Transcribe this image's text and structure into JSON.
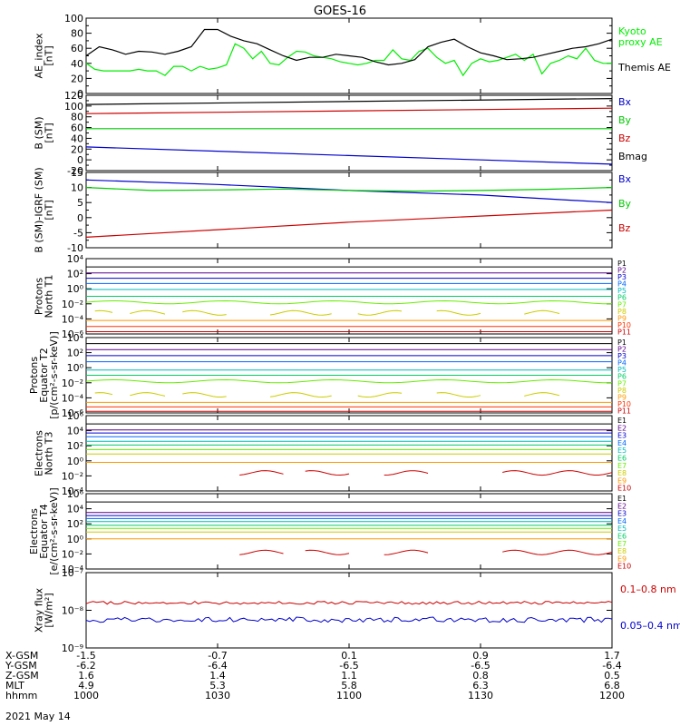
{
  "title": "GOES-16",
  "chart_data": [
    {
      "type": "line",
      "panel": "ae",
      "ylabel": [
        "AE_index",
        "[nT]"
      ],
      "ylim": [
        0,
        100
      ],
      "yticks": [
        0,
        20,
        40,
        60,
        80,
        100
      ],
      "series": [
        {
          "name": "Kyoto proxy AE",
          "label_lines": [
            "Kyoto",
            "proxy AE"
          ],
          "color": "#00ee00",
          "x": [
            0,
            2,
            4,
            6,
            8,
            10,
            12,
            14,
            16,
            18,
            20,
            22,
            24,
            26,
            28,
            30,
            32,
            34,
            36,
            38,
            40,
            42,
            44,
            46,
            48,
            50,
            52,
            54,
            56,
            58,
            60,
            62,
            64,
            66,
            68,
            70,
            72,
            74,
            76,
            78,
            80,
            82,
            84,
            86,
            88,
            90,
            92,
            94,
            96,
            98,
            100,
            102,
            104,
            106,
            108,
            110,
            112,
            114,
            116,
            118,
            120
          ],
          "y": [
            40,
            32,
            30,
            30,
            30,
            30,
            32,
            30,
            30,
            24,
            36,
            36,
            30,
            36,
            32,
            34,
            38,
            66,
            60,
            46,
            56,
            40,
            38,
            48,
            56,
            55,
            50,
            48,
            46,
            42,
            40,
            38,
            40,
            44,
            44,
            58,
            46,
            44,
            56,
            60,
            48,
            40,
            44,
            24,
            40,
            46,
            42,
            44,
            48,
            52,
            44,
            52,
            26,
            40,
            44,
            50,
            46,
            60,
            44,
            40,
            40
          ]
        },
        {
          "name": "Themis AE",
          "label_lines": [
            "Themis AE"
          ],
          "color": "#000000",
          "x": [
            0,
            3,
            6,
            9,
            12,
            15,
            18,
            21,
            24,
            27,
            30,
            33,
            36,
            39,
            42,
            45,
            48,
            51,
            54,
            57,
            60,
            63,
            66,
            69,
            72,
            75,
            78,
            81,
            84,
            87,
            90,
            93,
            96,
            99,
            102,
            105,
            108,
            111,
            114,
            117,
            120
          ],
          "y": [
            50,
            62,
            58,
            52,
            56,
            55,
            52,
            56,
            62,
            85,
            85,
            76,
            70,
            66,
            58,
            50,
            44,
            48,
            48,
            52,
            50,
            48,
            42,
            38,
            40,
            45,
            62,
            68,
            72,
            62,
            54,
            50,
            45,
            46,
            48,
            52,
            56,
            60,
            62,
            66,
            72
          ]
        }
      ]
    },
    {
      "type": "line",
      "panel": "b_sm",
      "ylabel": [
        "B (SM)",
        "[nT]"
      ],
      "ylim": [
        -20,
        120
      ],
      "yticks": [
        -20,
        0,
        20,
        40,
        60,
        80,
        100,
        120
      ],
      "series": [
        {
          "name": "Bx",
          "color": "#0000cc",
          "x": [
            0,
            120
          ],
          "y": [
            24,
            -8
          ]
        },
        {
          "name": "By",
          "color": "#00cc00",
          "x": [
            0,
            120
          ],
          "y": [
            58,
            58
          ]
        },
        {
          "name": "Bz",
          "color": "#cc0000",
          "x": [
            0,
            120
          ],
          "y": [
            86,
            96
          ]
        },
        {
          "name": "Bmag",
          "color": "#000000",
          "x": [
            0,
            120
          ],
          "y": [
            103,
            114
          ]
        }
      ]
    },
    {
      "type": "line",
      "panel": "b_igrf",
      "ylabel": [
        "B (SM)-IGRF (SM)",
        "[nT]"
      ],
      "ylim": [
        -10,
        15
      ],
      "yticks": [
        -10,
        -5,
        0,
        5,
        10,
        15
      ],
      "series": [
        {
          "name": "Bx",
          "color": "#0000cc",
          "x": [
            0,
            30,
            60,
            90,
            120
          ],
          "y": [
            12.5,
            11,
            9,
            7.5,
            5
          ]
        },
        {
          "name": "By",
          "color": "#00cc00",
          "x": [
            0,
            15,
            30,
            45,
            60,
            75,
            90,
            105,
            120
          ],
          "y": [
            10,
            9,
            9.2,
            9.5,
            9,
            8.8,
            9,
            9.4,
            10
          ]
        },
        {
          "name": "Bz",
          "color": "#cc0000",
          "x": [
            0,
            30,
            60,
            90,
            120
          ],
          "y": [
            -6.5,
            -4,
            -1.5,
            0.5,
            2.5
          ]
        }
      ]
    },
    {
      "type": "line",
      "panel": "protons_t1",
      "log": true,
      "ylabel": [
        "Protons",
        "North T1"
      ],
      "ylim": [
        -6,
        4
      ],
      "yticks": [
        -6,
        -4,
        -2,
        0,
        2,
        4
      ],
      "channels": [
        {
          "name": "P1",
          "color": "#000000",
          "y": 2.9
        },
        {
          "name": "P2",
          "color": "#5a008c",
          "y": 2.1
        },
        {
          "name": "P3",
          "color": "#0000cc",
          "y": 1.4
        },
        {
          "name": "P4",
          "color": "#0066ff",
          "y": 0.7
        },
        {
          "name": "P5",
          "color": "#00bbbb",
          "y": -0.1
        },
        {
          "name": "P6",
          "color": "#00cc66",
          "y": -1
        },
        {
          "name": "P7",
          "color": "#66ee00",
          "y": -1.8,
          "wavy": true
        },
        {
          "name": "P8",
          "color": "#cccc00",
          "y": -3.2,
          "dashed": true
        },
        {
          "name": "P9",
          "color": "#ff9900",
          "y": -4.2
        },
        {
          "name": "P10",
          "color": "#ff3300",
          "y": -5
        },
        {
          "name": "P11",
          "color": "#cc0000",
          "y": -5.7
        }
      ]
    },
    {
      "type": "line",
      "panel": "protons_t2",
      "log": true,
      "ylabel": [
        "Protons",
        "Equator T2",
        "[p/(cm²-s-sr-keV)]"
      ],
      "ylim": [
        -6,
        4
      ],
      "yticks": [
        -6,
        -4,
        -2,
        0,
        2,
        4
      ],
      "channels": [
        {
          "name": "P1",
          "color": "#000000",
          "y": 3.2
        },
        {
          "name": "P2",
          "color": "#5a008c",
          "y": 2.4
        },
        {
          "name": "P3",
          "color": "#0000cc",
          "y": 1.6
        },
        {
          "name": "P4",
          "color": "#0066ff",
          "y": 0.8
        },
        {
          "name": "P5",
          "color": "#00bbbb",
          "y": -0.3
        },
        {
          "name": "P6",
          "color": "#00cc66",
          "y": -1
        },
        {
          "name": "P7",
          "color": "#66ee00",
          "y": -1.8,
          "wavy": true
        },
        {
          "name": "P8",
          "color": "#cccc00",
          "y": -3.6,
          "dashed": true
        },
        {
          "name": "P9",
          "color": "#ff9900",
          "y": -4.6
        },
        {
          "name": "P10",
          "color": "#ff3300",
          "y": -5.2
        },
        {
          "name": "P11",
          "color": "#cc0000",
          "y": -5.8
        }
      ]
    },
    {
      "type": "line",
      "panel": "electrons_t3",
      "log": true,
      "ylabel": [
        "Electrons",
        "North T3"
      ],
      "ylim": [
        -4,
        6
      ],
      "yticks": [
        -4,
        -2,
        0,
        2,
        4,
        6
      ],
      "channels": [
        {
          "name": "E1",
          "color": "#000000",
          "y": 4.9
        },
        {
          "name": "E2",
          "color": "#5a008c",
          "y": 4.1
        },
        {
          "name": "E3",
          "color": "#0000cc",
          "y": 3.7
        },
        {
          "name": "E4",
          "color": "#0066ff",
          "y": 3.2
        },
        {
          "name": "E5",
          "color": "#00bbbb",
          "y": 2.6
        },
        {
          "name": "E6",
          "color": "#00cc66",
          "y": 2.1
        },
        {
          "name": "E7",
          "color": "#66ee00",
          "y": 1.5
        },
        {
          "name": "E8",
          "color": "#cccc00",
          "y": 0.9
        },
        {
          "name": "E9",
          "color": "#ff9900",
          "y": -0.2
        },
        {
          "name": "E10",
          "color": "#cc0000",
          "y": -1.6,
          "dashed": true
        }
      ]
    },
    {
      "type": "line",
      "panel": "electrons_t4",
      "log": true,
      "ylabel": [
        "Electrons",
        "Equator T4",
        "[e/(cm²-s-sr-keV)]"
      ],
      "ylim": [
        -4,
        6
      ],
      "yticks": [
        -4,
        -2,
        0,
        2,
        4,
        6
      ],
      "channels": [
        {
          "name": "E1",
          "color": "#000000",
          "y": 4.9
        },
        {
          "name": "E2",
          "color": "#5a008c",
          "y": 3.5
        },
        {
          "name": "E3",
          "color": "#0000cc",
          "y": 3.1
        },
        {
          "name": "E4",
          "color": "#0066ff",
          "y": 2.7
        },
        {
          "name": "E5",
          "color": "#00bbbb",
          "y": 2.3
        },
        {
          "name": "E6",
          "color": "#00cc66",
          "y": 1.8
        },
        {
          "name": "E7",
          "color": "#66ee00",
          "y": 1.4
        },
        {
          "name": "E8",
          "color": "#cccc00",
          "y": 0.9
        },
        {
          "name": "E9",
          "color": "#ff9900",
          "y": 0
        },
        {
          "name": "E10",
          "color": "#cc0000",
          "y": -1.8,
          "dashed": true
        }
      ]
    },
    {
      "type": "line",
      "panel": "xray",
      "log": true,
      "ylabel": [
        "Xray flux",
        "[W/m²]"
      ],
      "ylim": [
        -9,
        -7
      ],
      "ytick_labels": [
        "10⁻⁹",
        "10⁻⁸",
        "10⁻⁷"
      ],
      "yticks": [
        -9,
        -8,
        -7
      ],
      "series": [
        {
          "name": "0.1–0.8 nm",
          "color": "#cc0000",
          "y": -7.8
        },
        {
          "name": "0.05–0.4 nm",
          "color": "#0000cc",
          "y": -8.25
        }
      ]
    }
  ],
  "x_axis": {
    "xlim_minutes": [
      0,
      120
    ],
    "tick_minutes": [
      0,
      30,
      60,
      90,
      120
    ],
    "row_labels": [
      "X-GSM",
      "Y-GSM",
      "Z-GSM",
      "MLT",
      "hhmm"
    ],
    "rows": [
      [
        "-1.5",
        "-0.7",
        "0.1",
        "0.9",
        "1.7"
      ],
      [
        "-6.2",
        "-6.4",
        "-6.5",
        "-6.5",
        "-6.4"
      ],
      [
        "1.6",
        "1.4",
        "1.1",
        "0.8",
        "0.5"
      ],
      [
        "4.9",
        "5.3",
        "5.8",
        "6.3",
        "6.8"
      ],
      [
        "1000",
        "1030",
        "1100",
        "1130",
        "1200"
      ]
    ],
    "date": "2021 May 14"
  }
}
